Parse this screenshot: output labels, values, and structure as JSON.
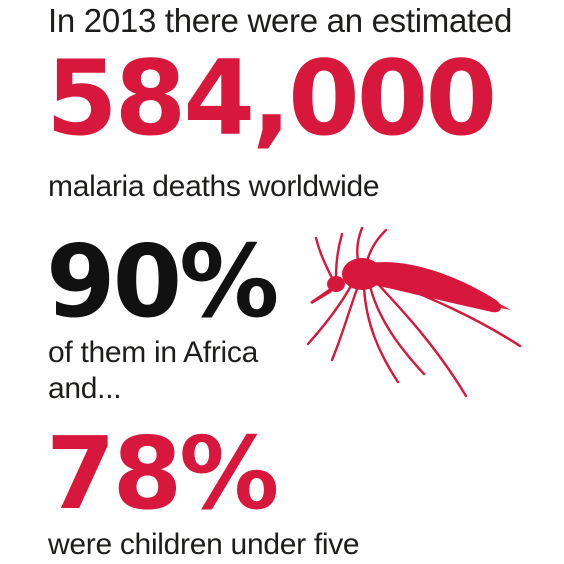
{
  "intro": "In 2013 there were an estimated",
  "stats": [
    {
      "value": "584,000",
      "caption": "malaria deaths worldwide",
      "color": "#d8173c"
    },
    {
      "value": "90%",
      "caption": "of them in Africa",
      "color": "#111111"
    },
    {
      "value": "78%",
      "caption": "were children under five",
      "color": "#d8173c"
    }
  ],
  "connector": "and...",
  "illustration": {
    "icon": "mosquito-icon",
    "color": "#d8173c"
  },
  "colors": {
    "accent": "#d8173c",
    "text": "#1d1d1b",
    "background": "#ffffff"
  }
}
